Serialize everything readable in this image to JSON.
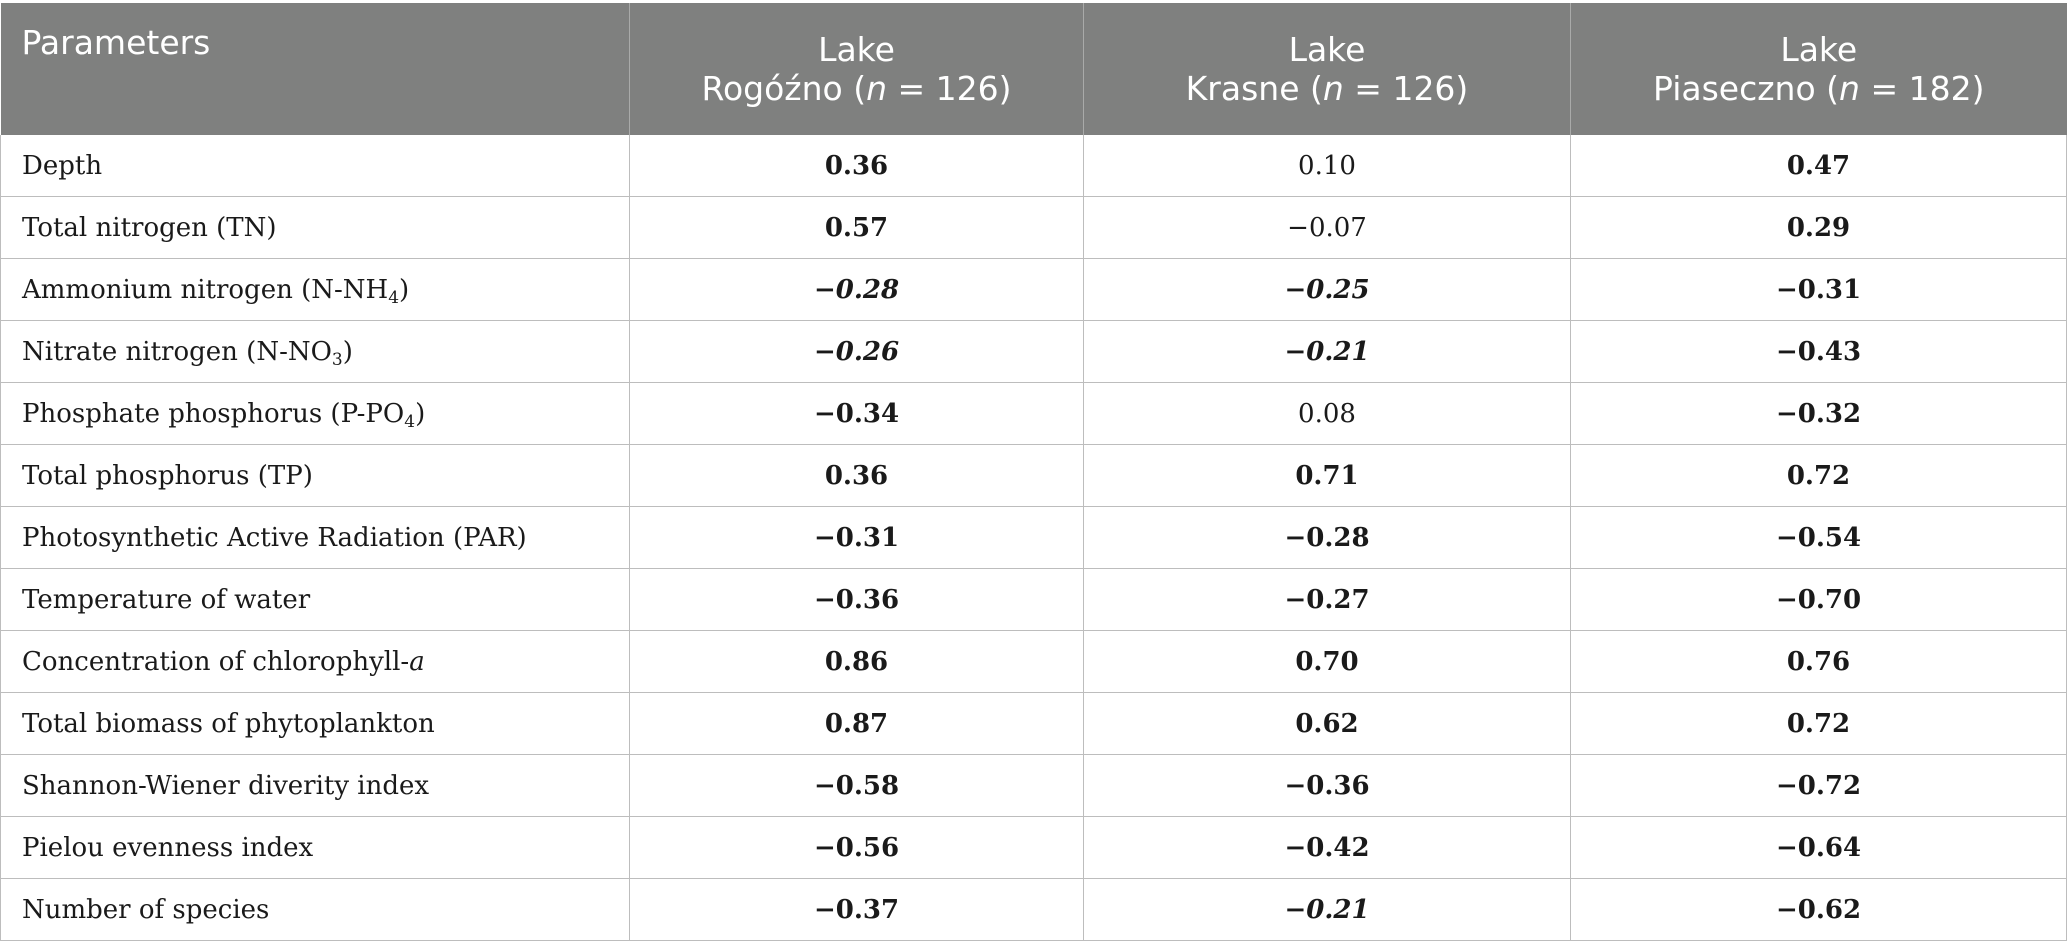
{
  "header": {
    "col0": "Parameters",
    "col1": {
      "line1": "Lake",
      "line2_name": "Rogóźno (",
      "line2_n": "n",
      "line2_rest": " = 126)"
    },
    "col2": {
      "line1": "Lake",
      "line2_name": "Krasne (",
      "line2_n": "n",
      "line2_rest": " = 126)"
    },
    "col3": {
      "line1": "Lake",
      "line2_name": "Piaseczno (",
      "line2_n": "n",
      "line2_rest": " = 182)"
    }
  },
  "rows": [
    {
      "param": "Depth",
      "v1": "0.36",
      "v2": "0.10",
      "v3": "0.47"
    },
    {
      "param": "Total nitrogen (TN)",
      "v1": "0.57",
      "v2": "−0.07",
      "v3": "0.29"
    },
    {
      "param_pre": "Ammonium nitrogen (N-NH",
      "param_sub": "4",
      "param_post": ")",
      "v1": "−0.28",
      "v2": "−0.25",
      "v3": "−0.31"
    },
    {
      "param_pre": "Nitrate nitrogen (N-NO",
      "param_sub": "3",
      "param_post": ")",
      "v1": "−0.26",
      "v2": "−0.21",
      "v3": "−0.43"
    },
    {
      "param_pre": "Phosphate phosphorus (P-PO",
      "param_sub": "4",
      "param_post": ")",
      "v1": "−0.34",
      "v2": "0.08",
      "v3": "−0.32"
    },
    {
      "param": "Total phosphorus (TP)",
      "v1": "0.36",
      "v2": "0.71",
      "v3": "0.72"
    },
    {
      "param": "Photosynthetic Active Radiation (PAR)",
      "v1": "−0.31",
      "v2": "−0.28",
      "v3": "−0.54"
    },
    {
      "param": "Temperature of water",
      "v1": "−0.36",
      "v2": "−0.27",
      "v3": "−0.70"
    },
    {
      "param_pre": "Concentration of chlorophyll-",
      "param_ital": "a",
      "v1": "0.86",
      "v2": "0.70",
      "v3": "0.76"
    },
    {
      "param": "Total biomass of phytoplankton",
      "v1": "0.87",
      "v2": "0.62",
      "v3": "0.72"
    },
    {
      "param": "Shannon-Wiener diverity index",
      "v1": "−0.58",
      "v2": "−0.36",
      "v3": "−0.72"
    },
    {
      "param": "Pielou evenness index",
      "v1": "−0.56",
      "v2": "−0.42",
      "v3": "−0.64"
    },
    {
      "param": "Number of species",
      "v1": "−0.37",
      "v2": "−0.21",
      "v3": "−0.62"
    }
  ],
  "colors": {
    "header_bg": "#7f807f",
    "header_text": "#ffffff",
    "grid": "#bdbdbd"
  }
}
